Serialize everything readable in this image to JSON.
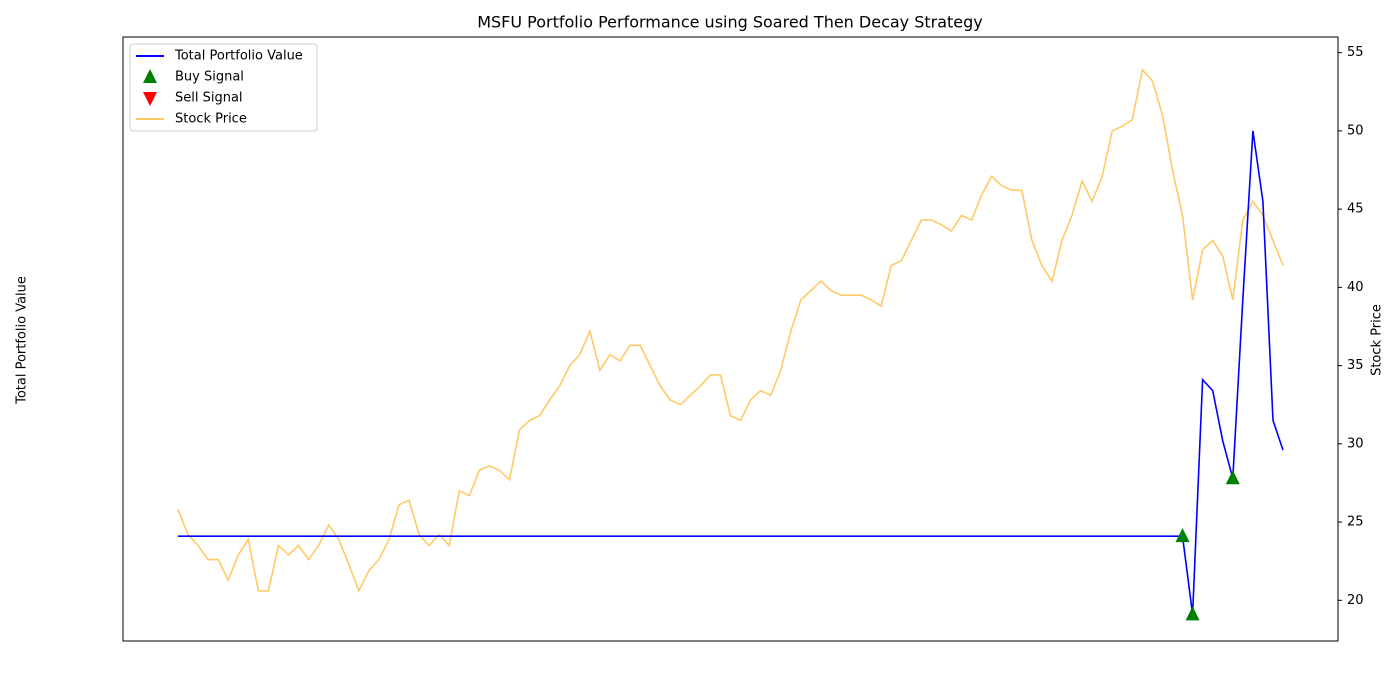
{
  "chart_data": {
    "type": "line",
    "title": "MSFU Portfolio Performance using Soared Then Decay Strategy",
    "ylabel": "Total Portfolio Value",
    "y2label": "Stock Price",
    "ylim": [
      17.4,
      56.0
    ],
    "y2lim": [
      17.4,
      56.0
    ],
    "y2ticks": [
      20,
      25,
      30,
      35,
      40,
      45,
      50,
      55
    ],
    "legend": "upper left",
    "series": [
      {
        "name": "Total Portfolio Value",
        "color": "#0000ff",
        "style": "line",
        "axis": "y",
        "values": [
          24.1,
          24.1,
          24.1,
          24.1,
          24.1,
          24.1,
          24.1,
          24.1,
          24.1,
          24.1,
          24.1,
          24.1,
          24.1,
          24.1,
          24.1,
          24.1,
          24.1,
          24.1,
          24.1,
          24.1,
          24.1,
          24.1,
          24.1,
          24.1,
          24.1,
          24.1,
          24.1,
          24.1,
          24.1,
          24.1,
          24.1,
          24.1,
          24.1,
          24.1,
          24.1,
          24.1,
          24.1,
          24.1,
          24.1,
          24.1,
          24.1,
          24.1,
          24.1,
          24.1,
          24.1,
          24.1,
          24.1,
          24.1,
          24.1,
          24.1,
          24.1,
          24.1,
          24.1,
          24.1,
          24.1,
          24.1,
          24.1,
          24.1,
          24.1,
          24.1,
          24.1,
          24.1,
          24.1,
          24.1,
          24.1,
          24.1,
          24.1,
          24.1,
          24.1,
          24.1,
          24.1,
          24.1,
          24.1,
          24.1,
          24.1,
          24.1,
          24.1,
          24.1,
          24.1,
          24.1,
          24.1,
          24.1,
          24.1,
          24.1,
          24.1,
          24.1,
          24.1,
          24.1,
          24.1,
          24.1,
          24.1,
          24.1,
          24.1,
          24.1,
          24.1,
          24.1,
          24.1,
          24.1,
          24.1,
          24.1,
          24.1,
          19.1,
          34.1,
          33.4,
          30.2,
          27.8,
          39.2,
          50.0,
          45.5,
          31.5,
          29.6
        ]
      },
      {
        "name": "Buy Signal",
        "color": "#008000",
        "style": "marker",
        "marker": "triangle-up",
        "axis": "y",
        "values": [
          null,
          null,
          null,
          null,
          null,
          null,
          null,
          null,
          null,
          null,
          null,
          null,
          null,
          null,
          null,
          null,
          null,
          null,
          null,
          null,
          null,
          null,
          null,
          null,
          null,
          null,
          null,
          null,
          null,
          null,
          null,
          null,
          null,
          null,
          null,
          null,
          null,
          null,
          null,
          null,
          null,
          null,
          null,
          null,
          null,
          null,
          null,
          null,
          null,
          null,
          null,
          null,
          null,
          null,
          null,
          null,
          null,
          null,
          null,
          null,
          null,
          null,
          null,
          null,
          null,
          null,
          null,
          null,
          null,
          null,
          null,
          null,
          null,
          null,
          null,
          null,
          null,
          null,
          null,
          null,
          null,
          null,
          null,
          null,
          null,
          null,
          null,
          null,
          null,
          null,
          null,
          null,
          null,
          null,
          null,
          null,
          null,
          null,
          null,
          null,
          24.1,
          19.1,
          null,
          null,
          null,
          27.8,
          null,
          null,
          null,
          null,
          null
        ]
      },
      {
        "name": "Sell Signal",
        "color": "#ff0000",
        "style": "marker",
        "marker": "triangle-down",
        "axis": "y",
        "values": [
          null,
          null,
          null,
          null,
          null,
          null,
          null,
          null,
          null,
          null,
          null,
          null,
          null,
          null,
          null,
          null,
          null,
          null,
          null,
          null,
          null,
          null,
          null,
          null,
          null,
          null,
          null,
          null,
          null,
          null,
          null,
          null,
          null,
          null,
          null,
          null,
          null,
          null,
          null,
          null,
          null,
          null,
          null,
          null,
          null,
          null,
          null,
          null,
          null,
          null,
          null,
          null,
          null,
          null,
          null,
          null,
          null,
          null,
          null,
          null,
          null,
          null,
          null,
          null,
          null,
          null,
          null,
          null,
          null,
          null,
          null,
          null,
          null,
          null,
          null,
          null,
          null,
          null,
          null,
          null,
          null,
          null,
          null,
          null,
          null,
          null,
          null,
          null,
          null,
          null,
          null,
          null,
          null,
          null,
          null,
          null,
          null,
          null,
          null,
          null,
          null,
          null,
          null,
          null,
          null,
          null,
          null,
          null,
          null,
          null,
          null
        ]
      },
      {
        "name": "Stock Price",
        "color": "#ffa500",
        "style": "line",
        "axis": "y2",
        "values": [
          25.8,
          24.2,
          23.5,
          22.6,
          22.6,
          21.3,
          22.9,
          23.9,
          20.6,
          20.6,
          23.5,
          22.9,
          23.5,
          22.6,
          23.5,
          24.8,
          23.9,
          22.3,
          20.6,
          21.9,
          22.6,
          23.9,
          26.1,
          26.4,
          24.2,
          23.5,
          24.2,
          23.5,
          27.0,
          26.7,
          28.3,
          28.6,
          28.3,
          27.7,
          30.9,
          31.5,
          31.8,
          32.8,
          33.7,
          35.0,
          35.7,
          37.2,
          34.7,
          35.7,
          35.3,
          36.3,
          36.3,
          35.0,
          33.7,
          32.8,
          32.5,
          33.1,
          33.7,
          34.4,
          34.4,
          31.8,
          31.5,
          32.8,
          33.4,
          33.1,
          34.7,
          37.2,
          39.2,
          39.8,
          40.4,
          39.8,
          39.5,
          39.5,
          39.5,
          39.2,
          38.8,
          41.4,
          41.7,
          43.0,
          44.3,
          44.3,
          44.0,
          43.6,
          44.6,
          44.3,
          45.9,
          47.1,
          46.5,
          46.2,
          46.2,
          43.0,
          41.4,
          40.4,
          43.0,
          44.6,
          46.8,
          45.5,
          47.1,
          50.0,
          50.3,
          50.7,
          53.9,
          53.2,
          51.0,
          47.5,
          44.6,
          39.2,
          42.4,
          43.0,
          42.0,
          39.2,
          44.3,
          45.5,
          44.6,
          43.0,
          41.4
        ]
      }
    ]
  }
}
